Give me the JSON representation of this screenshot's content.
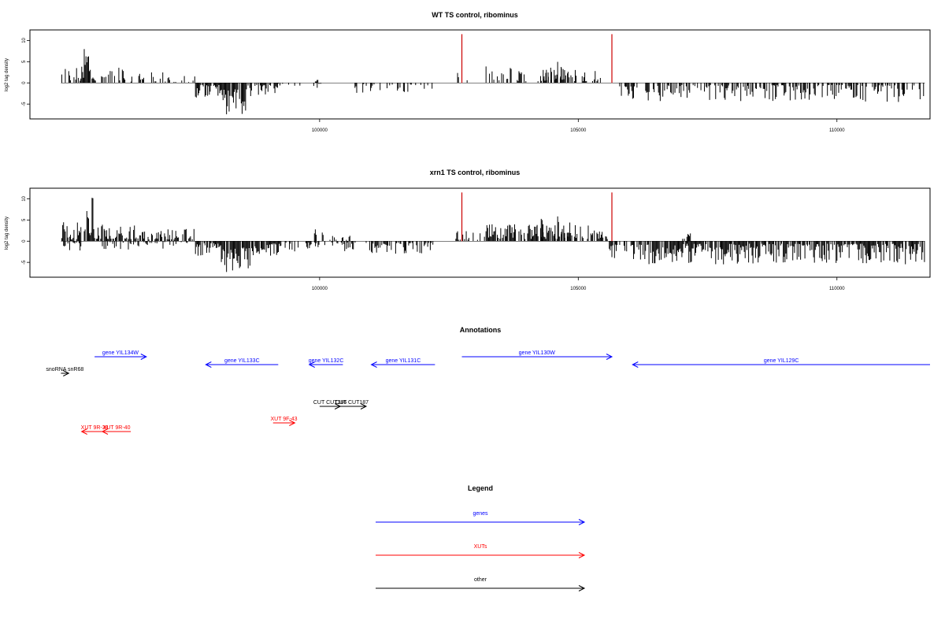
{
  "chart_data": [
    {
      "type": "bar",
      "title": "WT TS control, ribominus",
      "ylabel": "log2 tag density",
      "xlim": [
        94400,
        111800
      ],
      "ylim": [
        -8.5,
        12.5
      ],
      "x_ticks": [
        100000,
        105000,
        110000
      ],
      "x_tick_labels": [
        "100000",
        "105000",
        "110000"
      ],
      "y_ticks": [
        -5,
        0,
        5,
        10
      ],
      "y_tick_labels": [
        "-5",
        "0",
        "5",
        "10"
      ],
      "markers": [
        {
          "x": 102750,
          "value": 11.5,
          "color": "#cc0000"
        },
        {
          "x": 105650,
          "value": 11.5,
          "color": "#cc0000"
        }
      ],
      "regions": [
        {
          "x_start": 95000,
          "x_end": 95450,
          "max": 4.0,
          "min": 0.4,
          "density": 0.6,
          "sign": 1
        },
        {
          "x_start": 95450,
          "x_end": 95650,
          "max": 11.0,
          "min": 1.0,
          "density": 0.9,
          "sign": 1
        },
        {
          "x_start": 95650,
          "x_end": 96600,
          "max": 4.0,
          "min": 0.3,
          "density": 0.45,
          "sign": 1
        },
        {
          "x_start": 96600,
          "x_end": 97000,
          "max": 3.0,
          "min": 0.3,
          "density": 0.3,
          "sign": 1
        },
        {
          "x_start": 97000,
          "x_end": 97600,
          "max": 1.8,
          "min": 0.2,
          "density": 0.35,
          "sign": 1
        },
        {
          "x_start": 97600,
          "x_end": 98100,
          "max": 3.5,
          "min": 0.5,
          "density": 0.8,
          "sign": -1
        },
        {
          "x_start": 98100,
          "x_end": 98600,
          "max": 7.5,
          "min": 1.5,
          "density": 0.95,
          "sign": -1
        },
        {
          "x_start": 98600,
          "x_end": 99200,
          "max": 3.5,
          "min": 0.5,
          "density": 0.6,
          "sign": -1
        },
        {
          "x_start": 99200,
          "x_end": 100100,
          "max": 1.5,
          "min": 0.2,
          "density": 0.2,
          "sign": -1
        },
        {
          "x_start": 99900,
          "x_end": 100000,
          "max": 1.0,
          "min": 0.3,
          "density": 0.5,
          "sign": 1
        },
        {
          "x_start": 100600,
          "x_end": 102200,
          "max": 2.5,
          "min": 0.3,
          "density": 0.3,
          "sign": -1
        },
        {
          "x_start": 102600,
          "x_end": 103000,
          "max": 2.5,
          "min": 0.3,
          "density": 0.25,
          "sign": 1
        },
        {
          "x_start": 103200,
          "x_end": 105500,
          "max": 4.0,
          "min": 0.4,
          "density": 0.4,
          "sign": 1
        },
        {
          "x_start": 104300,
          "x_end": 104900,
          "max": 5.5,
          "min": 0.8,
          "density": 0.35,
          "sign": 1
        },
        {
          "x_start": 105800,
          "x_end": 106400,
          "max": 4.5,
          "min": 0.8,
          "density": 0.55,
          "sign": -1
        },
        {
          "x_start": 106400,
          "x_end": 111700,
          "max": 4.5,
          "min": 0.5,
          "density": 0.55,
          "sign": -1
        }
      ]
    },
    {
      "type": "bar",
      "title": "xrn1 TS control, ribominus",
      "ylabel": "log2 tag density",
      "xlim": [
        94400,
        111800
      ],
      "ylim": [
        -8.5,
        12.5
      ],
      "x_ticks": [
        100000,
        105000,
        110000
      ],
      "x_tick_labels": [
        "100000",
        "105000",
        "110000"
      ],
      "y_ticks": [
        -5,
        0,
        5,
        10
      ],
      "y_tick_labels": [
        "-5",
        "0",
        "5",
        "10"
      ],
      "markers": [
        {
          "x": 102750,
          "value": 11.5,
          "color": "#cc0000"
        },
        {
          "x": 105650,
          "value": 11.5,
          "color": "#cc0000"
        }
      ],
      "regions": [
        {
          "x_start": 95000,
          "x_end": 95450,
          "max": 4.5,
          "min": 0.4,
          "density": 0.8,
          "sign": 1
        },
        {
          "x_start": 95000,
          "x_end": 95400,
          "max": 2.5,
          "min": 0.3,
          "density": 0.5,
          "sign": -1
        },
        {
          "x_start": 95450,
          "x_end": 95650,
          "max": 11.0,
          "min": 1.0,
          "density": 0.95,
          "sign": 1
        },
        {
          "x_start": 95650,
          "x_end": 96600,
          "max": 4.0,
          "min": 0.5,
          "density": 0.8,
          "sign": 1
        },
        {
          "x_start": 96600,
          "x_end": 97600,
          "max": 3.0,
          "min": 0.4,
          "density": 0.6,
          "sign": 1
        },
        {
          "x_start": 95800,
          "x_end": 97500,
          "max": 2.0,
          "min": 0.2,
          "density": 0.3,
          "sign": -1
        },
        {
          "x_start": 97600,
          "x_end": 98100,
          "max": 4.0,
          "min": 0.5,
          "density": 0.85,
          "sign": -1
        },
        {
          "x_start": 98100,
          "x_end": 98700,
          "max": 7.5,
          "min": 1.5,
          "density": 0.95,
          "sign": -1
        },
        {
          "x_start": 98700,
          "x_end": 99300,
          "max": 4.0,
          "min": 0.5,
          "density": 0.7,
          "sign": -1
        },
        {
          "x_start": 99300,
          "x_end": 100100,
          "max": 2.5,
          "min": 0.3,
          "density": 0.4,
          "sign": -1
        },
        {
          "x_start": 99900,
          "x_end": 100100,
          "max": 3.5,
          "min": 0.5,
          "density": 0.7,
          "sign": 1
        },
        {
          "x_start": 100100,
          "x_end": 100700,
          "max": 2.5,
          "min": 0.3,
          "density": 0.5,
          "sign": -1
        },
        {
          "x_start": 100200,
          "x_end": 100600,
          "max": 1.5,
          "min": 0.3,
          "density": 0.4,
          "sign": 1
        },
        {
          "x_start": 100900,
          "x_end": 102200,
          "max": 3.0,
          "min": 0.4,
          "density": 0.65,
          "sign": -1
        },
        {
          "x_start": 102600,
          "x_end": 103200,
          "max": 2.5,
          "min": 0.3,
          "density": 0.45,
          "sign": 1
        },
        {
          "x_start": 103200,
          "x_end": 105600,
          "max": 4.0,
          "min": 0.5,
          "density": 0.75,
          "sign": 1
        },
        {
          "x_start": 104200,
          "x_end": 104900,
          "max": 6.5,
          "min": 1.0,
          "density": 0.4,
          "sign": 1
        },
        {
          "x_start": 105600,
          "x_end": 106300,
          "max": 4.5,
          "min": 0.8,
          "density": 0.8,
          "sign": -1
        },
        {
          "x_start": 106300,
          "x_end": 111700,
          "max": 5.5,
          "min": 0.6,
          "density": 0.8,
          "sign": -1
        },
        {
          "x_start": 107000,
          "x_end": 107200,
          "max": 2.5,
          "min": 0.5,
          "density": 0.5,
          "sign": 1
        }
      ]
    }
  ],
  "annotations": {
    "title": "Annotations",
    "features": [
      {
        "label": "gene YIL134W",
        "start": 95650,
        "end": 96650,
        "strand": "+",
        "color": "#0000ff",
        "row": 0
      },
      {
        "label": "gene YIL133C",
        "start": 97800,
        "end": 99200,
        "strand": "-",
        "color": "#0000ff",
        "row": 1
      },
      {
        "label": "gene YIL132C",
        "start": 99800,
        "end": 100450,
        "strand": "-",
        "color": "#0000ff",
        "row": 1
      },
      {
        "label": "gene YIL131C",
        "start": 101000,
        "end": 102230,
        "strand": "-",
        "color": "#0000ff",
        "row": 1
      },
      {
        "label": "gene YIL130W",
        "start": 102750,
        "end": 105650,
        "strand": "+",
        "color": "#0000ff",
        "row": 0
      },
      {
        "label": "gene YIL129C",
        "start": 106050,
        "end": 111800,
        "strand": "-",
        "color": "#0000ff",
        "row": 1
      },
      {
        "label": "snoRNA snR68",
        "start": 95000,
        "end": 95150,
        "strand": "+",
        "color": "#000000",
        "row": 2
      },
      {
        "label": "CUT CUT186",
        "start": 100000,
        "end": 100400,
        "strand": "+",
        "color": "#000000",
        "row": 3
      },
      {
        "label": "CUT CUT187",
        "start": 100350,
        "end": 100900,
        "strand": "+",
        "color": "#000000",
        "row": 3
      },
      {
        "label": "XUT 9F-43",
        "start": 99100,
        "end": 99520,
        "strand": "+",
        "color": "#ff0000",
        "row": 4
      },
      {
        "label": "XUT 9R-38",
        "start": 95400,
        "end": 95900,
        "strand": "-",
        "color": "#ff0000",
        "row": 5
      },
      {
        "label": "XUT 9R-40",
        "start": 95800,
        "end": 96350,
        "strand": "-",
        "color": "#ff0000",
        "row": 5
      }
    ]
  },
  "legend": {
    "title": "Legend",
    "entries": [
      {
        "label": "genes",
        "color": "#0000ff"
      },
      {
        "label": "XUTs",
        "color": "#ff0000"
      },
      {
        "label": "other",
        "color": "#000000"
      }
    ]
  }
}
